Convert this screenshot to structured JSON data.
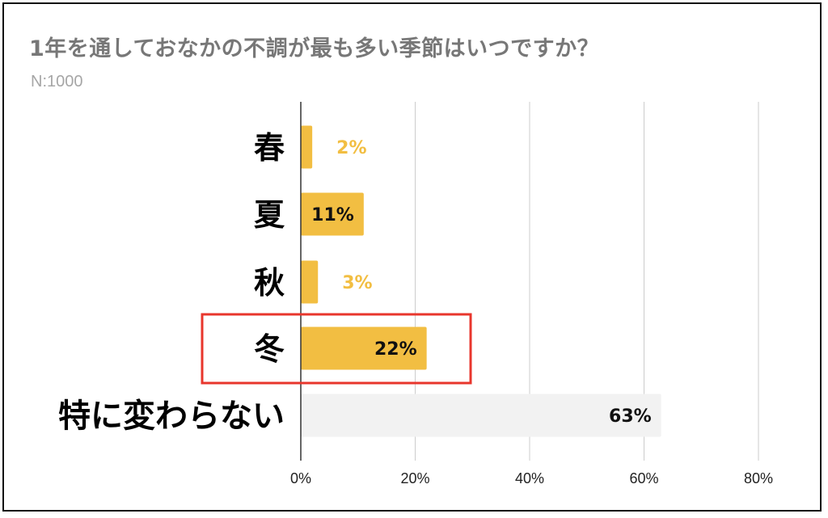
{
  "chart_data": {
    "type": "bar",
    "orientation": "horizontal",
    "title": "1年を通しておなかの不調が最も多い季節はいつですか？",
    "subtitle": "N:1000",
    "categories": [
      "春",
      "夏",
      "秋",
      "冬",
      "特に変わらない"
    ],
    "values": [
      2,
      11,
      3,
      22,
      63
    ],
    "value_labels": [
      "2%",
      "11%",
      "3%",
      "22%",
      "63%"
    ],
    "xlim": [
      0,
      80
    ],
    "xticks": [
      0,
      20,
      40,
      60,
      80
    ],
    "xtick_labels": [
      "0%",
      "20%",
      "40%",
      "60%",
      "80%"
    ],
    "grid": true,
    "bar_colors": [
      "#f2be42",
      "#f2be42",
      "#f2be42",
      "#f2be42",
      "#f2f2f2"
    ],
    "highlighted_category": "冬",
    "highlight_color": "#e8362c"
  }
}
